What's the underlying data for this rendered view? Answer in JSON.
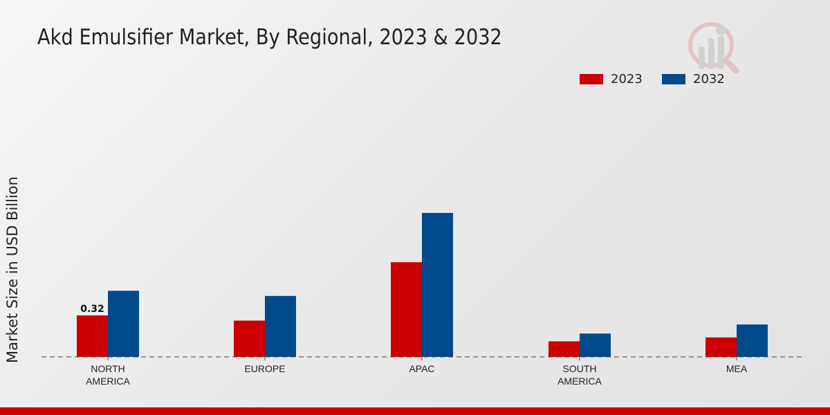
{
  "chart_data": {
    "type": "bar",
    "title": "Akd Emulsifier Market, By Regional, 2023 & 2032",
    "xlabel": "",
    "ylabel": "Market Size in USD Billion",
    "categories": [
      "NORTH AMERICA",
      "EUROPE",
      "APAC",
      "SOUTH AMERICA",
      "MEA"
    ],
    "series": [
      {
        "name": "2023",
        "color": "#cc0000",
        "values": [
          0.32,
          0.28,
          0.73,
          0.12,
          0.15
        ]
      },
      {
        "name": "2032",
        "color": "#004a8b",
        "values": [
          0.51,
          0.47,
          1.11,
          0.18,
          0.25
        ]
      }
    ],
    "data_labels": [
      {
        "series": 0,
        "index": 0,
        "text": "0.32"
      }
    ],
    "ylim": [
      0,
      1.4
    ],
    "grid": false,
    "legend": "top-right"
  }
}
